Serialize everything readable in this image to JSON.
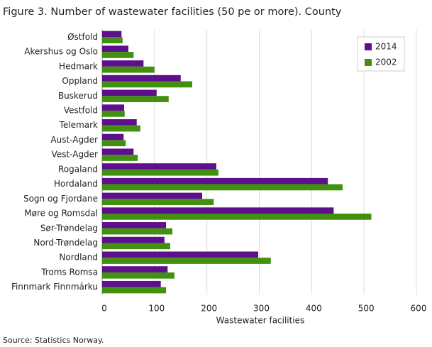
{
  "chart_data": {
    "type": "hbar",
    "title": "Figure 3. Number of wastewater facilities (50 pe or more). County",
    "source": "Source: Statistics Norway.",
    "x_label": "Wastewater facilities",
    "categories": [
      "Østfold",
      "Akershus og Oslo",
      "Hedmark",
      "Oppland",
      "Buskerud",
      "Vestfold",
      "Telemark",
      "Aust-Agder",
      "Vest-Agder",
      "Rogaland",
      "Hordaland",
      "Sogn og Fjordane",
      "Møre og Romsdal",
      "Sør-Trøndelag",
      "Nord-Trøndelag",
      "Nordland",
      "Troms Romsa",
      "Finnmark Finnmárku"
    ],
    "series": [
      {
        "name": "2014",
        "color": "#5e0f8c",
        "values": [
          37,
          50,
          79,
          150,
          104,
          42,
          66,
          41,
          60,
          218,
          431,
          191,
          442,
          122,
          119,
          298,
          125,
          112
        ]
      },
      {
        "name": "2002",
        "color": "#41900f",
        "values": [
          39,
          60,
          100,
          172,
          127,
          43,
          73,
          45,
          68,
          222,
          459,
          213,
          514,
          134,
          130,
          322,
          138,
          122
        ]
      }
    ],
    "xlim": [
      0,
      600
    ],
    "xticks": [
      0,
      100,
      200,
      300,
      400,
      500,
      600
    ],
    "grid": true,
    "legend": "top-right"
  }
}
